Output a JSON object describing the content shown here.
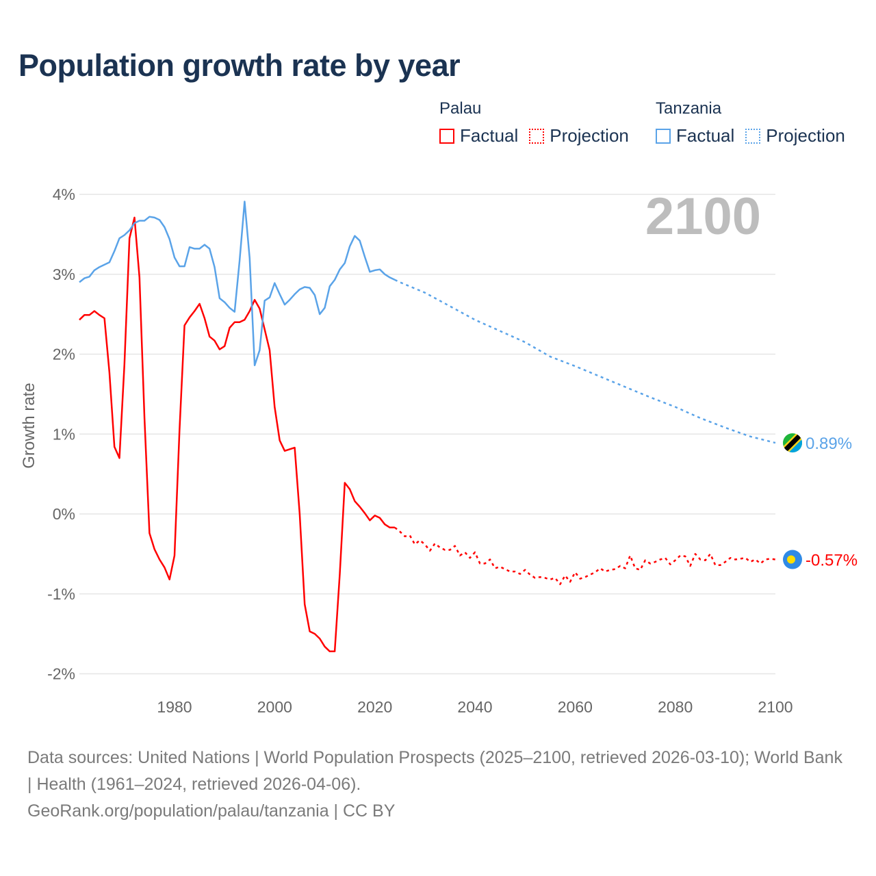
{
  "title": "Population growth rate by year",
  "legend": {
    "groups": [
      {
        "name": "Palau",
        "factual": "Factual",
        "projection": "Projection",
        "color": "#ff0000"
      },
      {
        "name": "Tanzania",
        "factual": "Factual",
        "projection": "Projection",
        "color": "#5aa3e8"
      }
    ]
  },
  "year_label": "2100",
  "footer": {
    "sources": "Data sources: United Nations | World Population Prospects (2025–2100, retrieved 2026-03-10); World Bank | Health (1961–2024, retrieved 2026-04-06).",
    "credit": "GeoRank.org/population/palau/tanzania | CC BY"
  },
  "chart_data": {
    "type": "line",
    "title": "Population growth rate by year",
    "xlabel": "",
    "ylabel": "Growth rate",
    "xlim": [
      1961,
      2100
    ],
    "ylim": [
      -2,
      4
    ],
    "x_ticks": [
      1980,
      2000,
      2020,
      2040,
      2060,
      2080,
      2100
    ],
    "y_ticks": [
      {
        "value": 4,
        "label": "4%"
      },
      {
        "value": 3,
        "label": "3%"
      },
      {
        "value": 2,
        "label": "2%"
      },
      {
        "value": 1,
        "label": "1%"
      },
      {
        "value": 0,
        "label": "0%"
      },
      {
        "value": -1,
        "label": "-1%"
      },
      {
        "value": -2,
        "label": "-2%"
      }
    ],
    "grid": true,
    "legend_position": "top-right",
    "series": [
      {
        "name": "Palau Factual",
        "color": "#ff0000",
        "style": "solid",
        "start_year": 1961,
        "step": 1,
        "values": [
          2.43,
          2.49,
          2.49,
          2.54,
          2.49,
          2.45,
          1.77,
          0.84,
          0.7,
          1.87,
          3.45,
          3.71,
          2.96,
          1.2,
          -0.24,
          -0.44,
          -0.57,
          -0.67,
          -0.82,
          -0.52,
          1.05,
          2.36,
          2.46,
          2.54,
          2.63,
          2.45,
          2.22,
          2.17,
          2.06,
          2.1,
          2.33,
          2.4,
          2.4,
          2.43,
          2.54,
          2.68,
          2.57,
          2.31,
          2.05,
          1.34,
          0.92,
          0.79,
          0.81,
          0.83,
          0.0,
          -1.13,
          -1.47,
          -1.5,
          -1.56,
          -1.66,
          -1.72,
          -1.72,
          -0.75,
          0.39,
          0.31,
          0.16,
          0.09,
          0.01,
          -0.08,
          -0.02,
          -0.05,
          -0.13,
          -0.17,
          -0.17
        ]
      },
      {
        "name": "Palau Projection",
        "color": "#ff0000",
        "style": "dotted",
        "start_year": 2025,
        "step": 1,
        "values": [
          -0.22,
          -0.28,
          -0.27,
          -0.38,
          -0.33,
          -0.38,
          -0.46,
          -0.37,
          -0.42,
          -0.45,
          -0.45,
          -0.4,
          -0.52,
          -0.48,
          -0.55,
          -0.48,
          -0.62,
          -0.62,
          -0.57,
          -0.68,
          -0.66,
          -0.69,
          -0.72,
          -0.72,
          -0.75,
          -0.7,
          -0.76,
          -0.8,
          -0.79,
          -0.8,
          -0.82,
          -0.8,
          -0.88,
          -0.77,
          -0.85,
          -0.73,
          -0.81,
          -0.79,
          -0.76,
          -0.73,
          -0.68,
          -0.72,
          -0.7,
          -0.69,
          -0.65,
          -0.68,
          -0.52,
          -0.68,
          -0.7,
          -0.58,
          -0.62,
          -0.6,
          -0.57,
          -0.55,
          -0.63,
          -0.58,
          -0.52,
          -0.53,
          -0.65,
          -0.5,
          -0.57,
          -0.58,
          -0.5,
          -0.64,
          -0.64,
          -0.6,
          -0.55,
          -0.57,
          -0.56,
          -0.55,
          -0.6,
          -0.57,
          -0.62,
          -0.57,
          -0.56,
          -0.57
        ]
      },
      {
        "name": "Tanzania Factual",
        "color": "#5aa3e8",
        "style": "solid",
        "start_year": 1961,
        "step": 1,
        "values": [
          2.9,
          2.95,
          2.97,
          3.05,
          3.09,
          3.12,
          3.15,
          3.29,
          3.45,
          3.49,
          3.55,
          3.64,
          3.67,
          3.67,
          3.72,
          3.71,
          3.68,
          3.59,
          3.44,
          3.21,
          3.1,
          3.1,
          3.34,
          3.32,
          3.32,
          3.37,
          3.32,
          3.09,
          2.7,
          2.65,
          2.58,
          2.53,
          3.17,
          3.91,
          3.2,
          1.86,
          2.05,
          2.67,
          2.71,
          2.89,
          2.75,
          2.62,
          2.68,
          2.75,
          2.81,
          2.84,
          2.83,
          2.74,
          2.5,
          2.58,
          2.85,
          2.93,
          3.06,
          3.14,
          3.35,
          3.48,
          3.42,
          3.22,
          3.03,
          3.05,
          3.06,
          3.0,
          2.96,
          2.93
        ]
      },
      {
        "name": "Tanzania Projection",
        "color": "#5aa3e8",
        "style": "dotted",
        "start_year": 2025,
        "step": 5,
        "values": [
          2.9,
          2.77,
          2.6,
          2.43,
          2.29,
          2.15,
          1.97,
          1.85,
          1.72,
          1.59,
          1.46,
          1.34,
          1.2,
          1.08,
          0.97,
          0.89
        ]
      }
    ],
    "end_labels": [
      {
        "country": "Tanzania",
        "label": "0.89%",
        "value": 0.89,
        "color": "#5aa3e8"
      },
      {
        "country": "Palau",
        "label": "-0.57%",
        "value": -0.57,
        "color": "#ff0000"
      }
    ]
  }
}
